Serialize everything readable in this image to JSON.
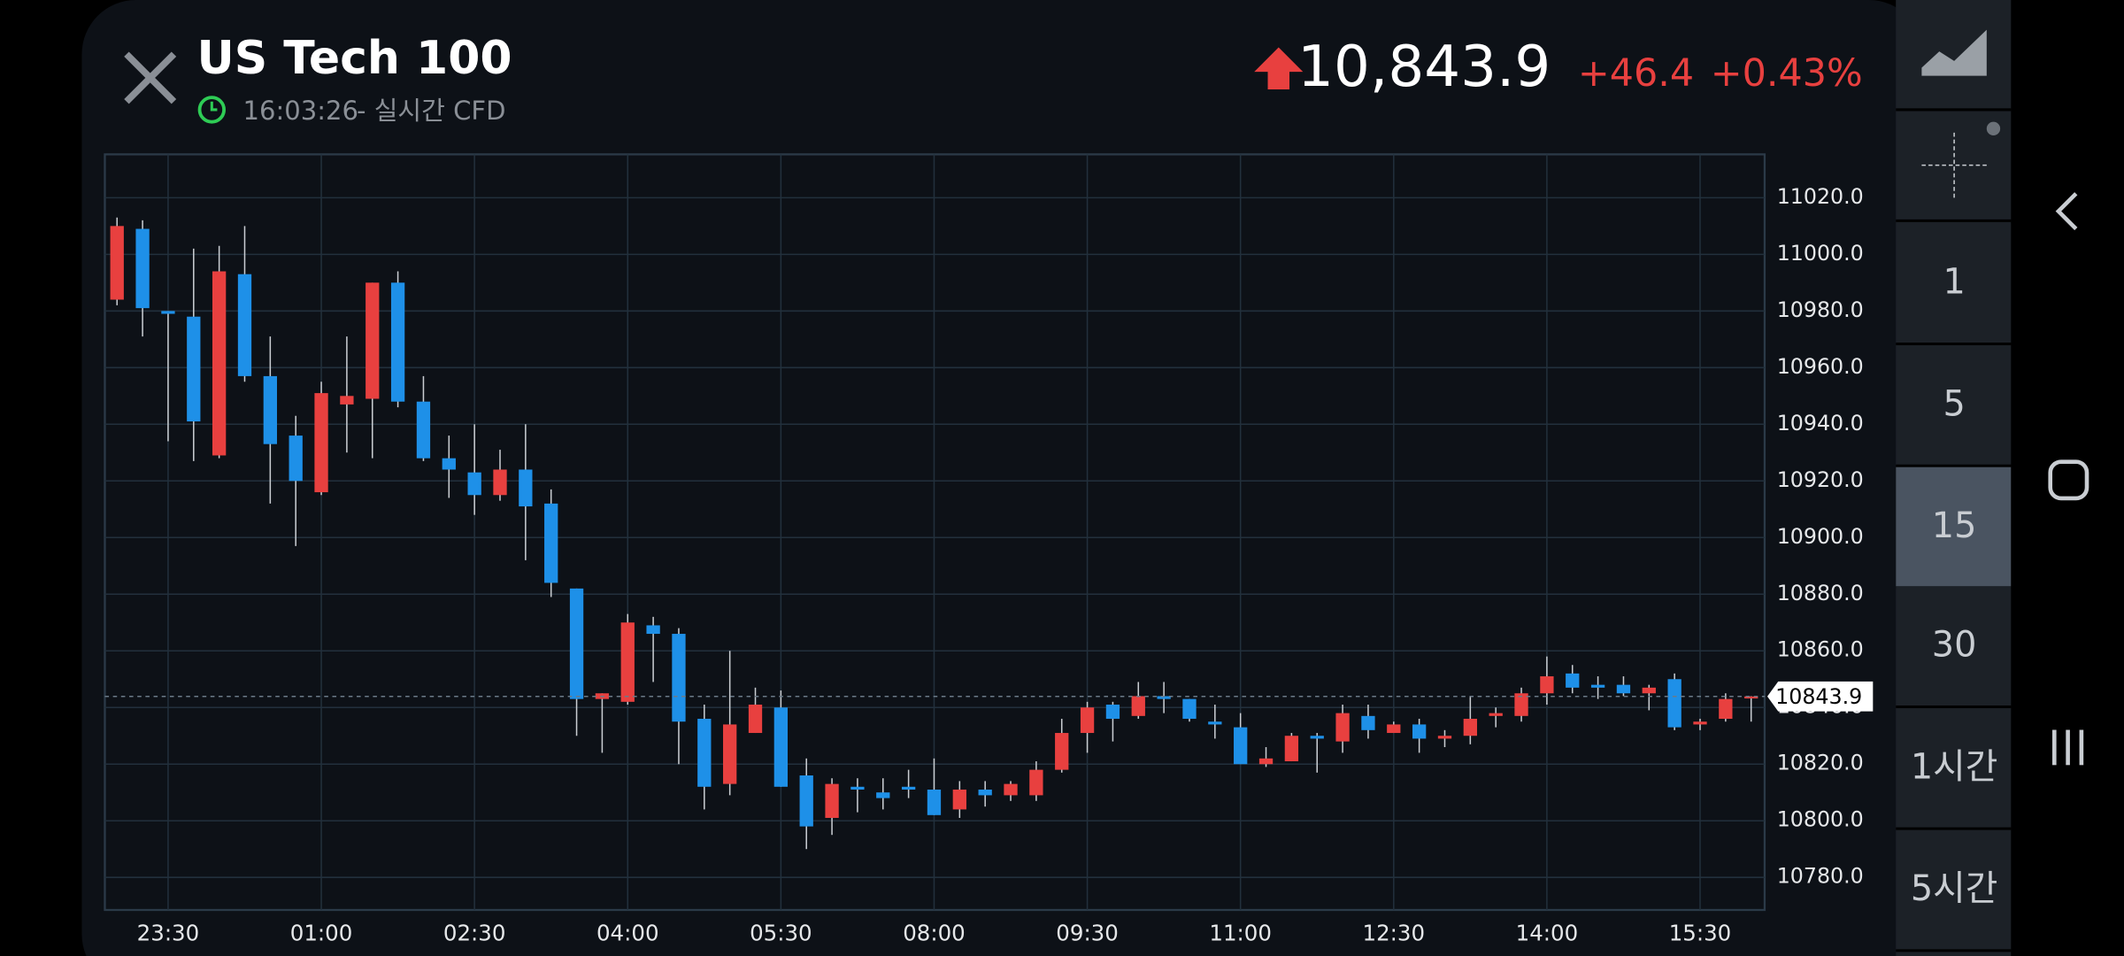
{
  "header": {
    "title": "US Tech 100",
    "time": "16:03:26",
    "source": "- 실시간 CFD",
    "price": "10,843.9",
    "change": "+46.4",
    "change_pct": "+0.43%"
  },
  "sidebar": {
    "timeframes": [
      "1",
      "5",
      "15",
      "30",
      "1시간",
      "5시간"
    ]
  },
  "chart_data": {
    "type": "candlestick",
    "categories": [
      null,
      null,
      "23:30",
      null,
      null,
      null,
      null,
      null,
      "01:00",
      null,
      null,
      null,
      null,
      null,
      "02:30",
      null,
      null,
      null,
      null,
      null,
      "04:00",
      null,
      null,
      null,
      null,
      null,
      "05:30",
      null,
      null,
      null,
      null,
      null,
      "08:00",
      null,
      null,
      null,
      null,
      null,
      "09:30",
      null,
      null,
      null,
      null,
      null,
      "11:00",
      null,
      null,
      null,
      null,
      null,
      "12:30",
      null,
      null,
      null,
      null,
      null,
      "14:00",
      null,
      null,
      null,
      null,
      null,
      "15:30",
      null,
      null
    ],
    "open": [
      10984,
      11009,
      10980,
      10978,
      10929,
      10993,
      10957,
      10936,
      10916,
      10947,
      10949,
      10990,
      10948,
      10928,
      10923,
      10915,
      10924,
      10912,
      10882,
      10843,
      10842,
      10869,
      10866,
      10836,
      10813,
      10831,
      10840,
      10816,
      10801,
      10812,
      10810,
      10812,
      10811,
      10804,
      10811,
      10809,
      10809,
      10818,
      10831,
      10841,
      10837,
      10844,
      10843,
      10835,
      10833,
      10820,
      10821,
      10830,
      10828,
      10837,
      10831,
      10834,
      10829,
      10830,
      10837,
      10837,
      10845,
      10852,
      10848,
      10848,
      10845,
      10850,
      10834,
      10836,
      10843.5
    ],
    "high": [
      11013,
      11012,
      10980,
      11002,
      11003,
      11010,
      10971,
      10943,
      10955,
      10971,
      10990,
      10994,
      10957,
      10936,
      10940,
      10931,
      10940,
      10917,
      10882,
      10845,
      10873,
      10872,
      10868,
      10841,
      10860,
      10847,
      10846,
      10822,
      10815,
      10815,
      10815,
      10818,
      10822,
      10814,
      10814,
      10814,
      10821,
      10836,
      10842,
      10842,
      10849,
      10849,
      10843,
      10841,
      10838,
      10826,
      10831,
      10831,
      10841,
      10841,
      10835,
      10836,
      10832,
      10844,
      10840,
      10847,
      10858,
      10855,
      10851,
      10851,
      10848,
      10852,
      10836,
      10845,
      10844
    ],
    "low": [
      10982,
      10971,
      10934,
      10927,
      10928,
      10955,
      10912,
      10897,
      10915,
      10930,
      10928,
      10946,
      10927,
      10914,
      10908,
      10913,
      10892,
      10879,
      10830,
      10824,
      10841,
      10849,
      10820,
      10804,
      10809,
      10831,
      10812,
      10790,
      10795,
      10803,
      10804,
      10808,
      10802,
      10801,
      10805,
      10807,
      10807,
      10817,
      10824,
      10828,
      10836,
      10838,
      10835,
      10829,
      10820,
      10819,
      10821,
      10817,
      10824,
      10829,
      10831,
      10824,
      10826,
      10827,
      10833,
      10835,
      10841,
      10845,
      10843,
      10844,
      10839,
      10832,
      10832,
      10835,
      10835
    ],
    "close": [
      11010,
      10981,
      10979,
      10941,
      10994,
      10957,
      10933,
      10920,
      10951,
      10950,
      10990,
      10948,
      10928,
      10924,
      10915,
      10924,
      10911,
      10884,
      10843,
      10845,
      10870,
      10866,
      10835,
      10812,
      10834,
      10841,
      10812,
      10798,
      10813,
      10811,
      10808,
      10811,
      10802,
      10811,
      10809,
      10813,
      10818,
      10831,
      10840,
      10836,
      10844,
      10843,
      10836,
      10834,
      10820,
      10822,
      10830,
      10829,
      10838,
      10832,
      10834,
      10829,
      10830,
      10836,
      10838,
      10845,
      10851,
      10847,
      10847,
      10845,
      10847,
      10833,
      10835,
      10843,
      10843.9
    ],
    "up_color": "#e8403f",
    "down_color": "#1e90e8",
    "ylim": [
      10768.5,
      11035.3
    ],
    "yticks": [
      {
        "value": 10780,
        "label": "10780.0"
      },
      {
        "value": 10800,
        "label": "10800.0"
      },
      {
        "value": 10820,
        "label": "10820.0"
      },
      {
        "value": 10840,
        "label": "10840.0"
      },
      {
        "value": 10860,
        "label": "10860.0"
      },
      {
        "value": 10880,
        "label": "10880.0"
      },
      {
        "value": 10900,
        "label": "10900.0"
      },
      {
        "value": 10920,
        "label": "10920.0"
      },
      {
        "value": 10940,
        "label": "10940.0"
      },
      {
        "value": 10960,
        "label": "10960.0"
      },
      {
        "value": 10980,
        "label": "10980.0"
      },
      {
        "value": 11000,
        "label": "11000.0"
      },
      {
        "value": 11020,
        "label": "11020.0"
      }
    ],
    "last_price": {
      "value": 10843.9,
      "label": "10843.9"
    },
    "grid": true
  }
}
